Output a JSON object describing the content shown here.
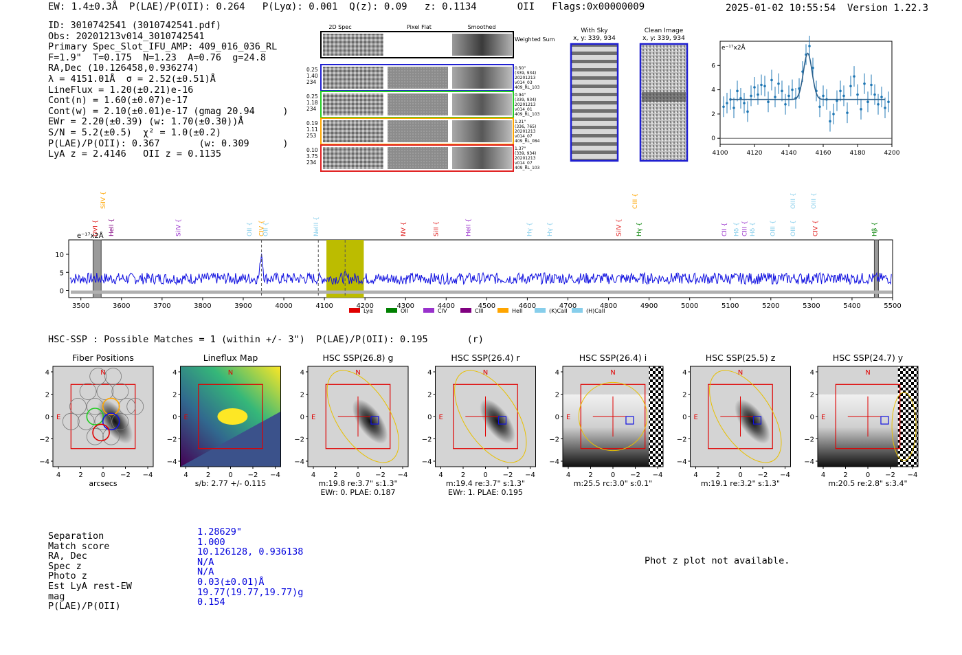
{
  "header": {
    "left": "EW: 1.4±0.3Å  P(LAE)/P(OII): 0.264   P(Lyα): 0.001  Q(z): 0.09   z: 0.1134       OII   Flags:0x00000009",
    "right": "2025-01-02 10:55:54  Version 1.22.3"
  },
  "info_lines": [
    "ID: 3010742541 (3010742541.pdf)",
    "Obs: 20201213v014_3010742541",
    "Primary Spec_Slot_IFU_AMP: 409_016_036_RL",
    "F=1.9\"  T=0.175  N=1.23  A=0.76  g=24.8",
    "RA,Dec (10.126458,0.936274)",
    "λ = 4151.01Å  σ = 2.52(±0.51)Å",
    "LineFlux = 1.20(±0.21)e-16",
    "Cont(n) = 1.60(±0.07)e-17",
    "Cont(w) = 2.10(±0.01)e-17 (gmag 20.94     )",
    "EWr = 2.20(±0.39) (w: 1.70(±0.30))Å",
    "S/N = 5.2(±0.5)  χ² = 1.0(±0.2)",
    "P(LAE)/P(OII): 0.367       (w: 0.309      )",
    "LyA z = 2.4146   OII z = 0.1135"
  ],
  "cutouts": {
    "col_headers": [
      "2D Spec",
      "Pixel Flat",
      "Smoothed"
    ],
    "weighted_label": "Weighted Sum",
    "rows": [
      {
        "left": [
          "0.25",
          "1.40",
          "234"
        ],
        "right": [
          "0.50\"",
          "(339, 934)",
          "20201213",
          "v014_03",
          "409_RL_103"
        ],
        "color": "#1f1fd0"
      },
      {
        "left": [
          "0.25",
          "1.18",
          "234"
        ],
        "right": [
          "0.94\"",
          "(339, 934)",
          "20201213",
          "v014_01",
          "409_RL_103"
        ],
        "color": "#22cc22"
      },
      {
        "left": [
          "0.19",
          "1.11",
          "253"
        ],
        "right": [
          "1.21\"",
          "(336, 765)",
          "20201213",
          "v014_07",
          "409_RL_084"
        ],
        "color": "#ffa500"
      },
      {
        "left": [
          "0.10",
          "3.75",
          "234"
        ],
        "right": [
          "1.37\"",
          "(339, 934)",
          "20201213",
          "v014_07",
          "409_RL_103"
        ],
        "color": "#e02020"
      }
    ],
    "with_sky_title": "With Sky",
    "clean_title": "Clean Image",
    "xy_label": "x, y: 339, 934"
  },
  "hsc": {
    "title": "HSC-SSP : Possible Matches = 1 (within +/- 3\")  P(LAE)/P(OII): 0.195       (r)",
    "panels": [
      {
        "title": "Fiber Positions",
        "xlabel": "arcsecs",
        "sub1": "",
        "sub2": ""
      },
      {
        "title": "Lineflux Map",
        "xlabel": "",
        "sub1": "s/b: 2.77 +/- 0.115",
        "sub2": ""
      },
      {
        "title": "HSC SSP(26.8) g",
        "xlabel": "",
        "sub1": "m:19.8  re:3.7\"  s:1.3\"",
        "sub2": "EWr: 0. PLAE: 0.187"
      },
      {
        "title": "HSC SSP(26.4) r",
        "xlabel": "",
        "sub1": "m:19.4  re:3.7\"  s:1.3\"",
        "sub2": "EWr: 1. PLAE: 0.195"
      },
      {
        "title": "HSC SSP(26.4) i",
        "xlabel": "",
        "sub1": "m:25.5 rc:3.0\"  s:0.1\"",
        "sub2": ""
      },
      {
        "title": "HSC SSP(25.5) z",
        "xlabel": "",
        "sub1": "m:19.1  re:3.2\"  s:1.3\"",
        "sub2": ""
      },
      {
        "title": "HSC SSP(24.7) y",
        "xlabel": "",
        "sub1": "m:20.5  re:2.8\"  s:3.4\"",
        "sub2": ""
      }
    ],
    "north": "N",
    "east": "E",
    "ticks": [
      "4",
      "2",
      "0",
      "−2",
      "−4"
    ]
  },
  "summary": {
    "labels": [
      "Separation",
      "Match score",
      "RA, Dec",
      "Spec z",
      "Photo z",
      "Est LyA rest-EW",
      "mag",
      "P(LAE)/P(OII)"
    ],
    "values": [
      "1.28629\"",
      "1.000",
      "10.126128, 0.936138",
      "N/A",
      "N/A",
      "0.03(±0.01)Å",
      "19.77(19.77,19.77)g",
      "0.154"
    ],
    "phot_z_note": "Phot z plot not available."
  },
  "chart_data": [
    {
      "type": "line",
      "name": "zoom line fit",
      "title": "",
      "ylabel_unit": "e⁻¹⁷x2Å",
      "xlim": [
        4100,
        4200
      ],
      "ylim": [
        -0.5,
        8
      ],
      "x_ticks": [
        4100,
        4120,
        4140,
        4160,
        4180,
        4200
      ],
      "y_ticks": [
        0,
        2,
        4,
        6
      ],
      "model": {
        "continuum": 3.2,
        "peak": 7.0,
        "center": 4151.0,
        "sigma": 2.5
      },
      "points_x": [
        4102,
        4104,
        4106,
        4108,
        4110,
        4112,
        4114,
        4116,
        4118,
        4120,
        4122,
        4124,
        4126,
        4128,
        4130,
        4132,
        4134,
        4136,
        4138,
        4140,
        4142,
        4144,
        4146,
        4148,
        4150,
        4152,
        4154,
        4156,
        4158,
        4160,
        4162,
        4164,
        4166,
        4168,
        4170,
        4172,
        4174,
        4176,
        4178,
        4180,
        4182,
        4184,
        4186,
        4188,
        4190,
        4192,
        4194,
        4196,
        4198
      ],
      "points_y": [
        2.6,
        2.9,
        3.2,
        2.5,
        3.9,
        3.3,
        2.9,
        2.2,
        3.5,
        4.2,
        3.6,
        4.4,
        4.3,
        3.0,
        4.8,
        3.4,
        4.5,
        3.9,
        2.8,
        3.5,
        4.0,
        3.3,
        4.1,
        5.5,
        6.9,
        7.6,
        5.8,
        3.9,
        2.6,
        3.5,
        3.2,
        1.4,
        2.0,
        3.1,
        3.9,
        3.5,
        2.1,
        4.3,
        5.1,
        3.6,
        2.4,
        4.5,
        3.0,
        4.4,
        3.6,
        2.8,
        3.4,
        2.5,
        3.0
      ],
      "error_bar": 0.85
    },
    {
      "type": "line",
      "name": "full spectrum",
      "title": "",
      "ylabel_unit": "e⁻¹⁷x2Å",
      "xlim": [
        3470,
        5500
      ],
      "ylim": [
        -2,
        14
      ],
      "x_ticks": [
        3500,
        3600,
        3700,
        3800,
        3900,
        4000,
        4100,
        4200,
        4300,
        4400,
        4500,
        4600,
        4700,
        4800,
        4900,
        5000,
        5100,
        5200,
        5300,
        5400,
        5500
      ],
      "y_ticks": [
        0,
        5,
        10
      ],
      "continuum": 3.3,
      "features": [
        {
          "center": 3945,
          "height": 10.5,
          "width": 3
        },
        {
          "center": 4151,
          "height": 3.8,
          "width": 3
        }
      ],
      "highlight_band": [
        4105,
        4197
      ],
      "highlight_color": "#bcbc00",
      "vlines": [
        3945,
        4085,
        4151
      ],
      "masked_bands": [
        [
          3530,
          3550
        ],
        [
          5455,
          5465
        ]
      ],
      "line_labels": [
        {
          "x": 3560,
          "label": "SiIV",
          "color": "#ffa500",
          "row": 0
        },
        {
          "x": 3540,
          "label": "OVI",
          "color": "#e02020",
          "row": 1
        },
        {
          "x": 3580,
          "label": "HeII",
          "color": "#800080",
          "row": 1
        },
        {
          "x": 3745,
          "label": "SiIV",
          "color": "#9932cc",
          "row": 1
        },
        {
          "x": 3920,
          "label": "OII",
          "color": "#87ceeb",
          "row": 1
        },
        {
          "x": 3950,
          "label": "CIV",
          "color": "#ffa500",
          "row": 1
        },
        {
          "x": 3960,
          "label": "OII",
          "color": "#87ceeb",
          "row": 1
        },
        {
          "x": 4085,
          "label": "NeIII",
          "color": "#87ceeb",
          "row": 1
        },
        {
          "x": 4300,
          "label": "NV",
          "color": "#e02020",
          "row": 1
        },
        {
          "x": 4380,
          "label": "SiII",
          "color": "#e02020",
          "row": 1
        },
        {
          "x": 4460,
          "label": "HeII",
          "color": "#9932cc",
          "row": 1
        },
        {
          "x": 4610,
          "label": "Hγ",
          "color": "#87ceeb",
          "row": 1
        },
        {
          "x": 4660,
          "label": "Hγ",
          "color": "#87ceeb",
          "row": 1
        },
        {
          "x": 4830,
          "label": "SiIV",
          "color": "#e02020",
          "row": 1
        },
        {
          "x": 4870,
          "label": "CIII",
          "color": "#ffa500",
          "row": 0
        },
        {
          "x": 4880,
          "label": "Hγ",
          "color": "#008000",
          "row": 1
        },
        {
          "x": 5090,
          "label": "CII",
          "color": "#9932cc",
          "row": 1
        },
        {
          "x": 5120,
          "label": "Hδ",
          "color": "#87ceeb",
          "row": 1
        },
        {
          "x": 5140,
          "label": "CIII",
          "color": "#9932cc",
          "row": 1
        },
        {
          "x": 5160,
          "label": "Hδ",
          "color": "#87ceeb",
          "row": 1
        },
        {
          "x": 5210,
          "label": "OIII",
          "color": "#87ceeb",
          "row": 1
        },
        {
          "x": 5260,
          "label": "OIII",
          "color": "#87ceeb",
          "row": 0
        },
        {
          "x": 5260,
          "label": "OIII",
          "color": "#87ceeb",
          "row": 1
        },
        {
          "x": 5310,
          "label": "OIII",
          "color": "#87ceeb",
          "row": 0
        },
        {
          "x": 5315,
          "label": "CIV",
          "color": "#e02020",
          "row": 1
        },
        {
          "x": 5460,
          "label": "Hβ",
          "color": "#008000",
          "row": 1
        }
      ],
      "legend": [
        {
          "label": "Lyα",
          "color": "#e00000"
        },
        {
          "label": "OII",
          "color": "#008000"
        },
        {
          "label": "CIV",
          "color": "#9932cc"
        },
        {
          "label": "CIII",
          "color": "#800080"
        },
        {
          "label": "HeII",
          "color": "#ffa500"
        },
        {
          "label": "(K)CaII",
          "color": "#87ceeb"
        },
        {
          "label": "(H)CaII",
          "color": "#87ceeb"
        }
      ]
    }
  ]
}
